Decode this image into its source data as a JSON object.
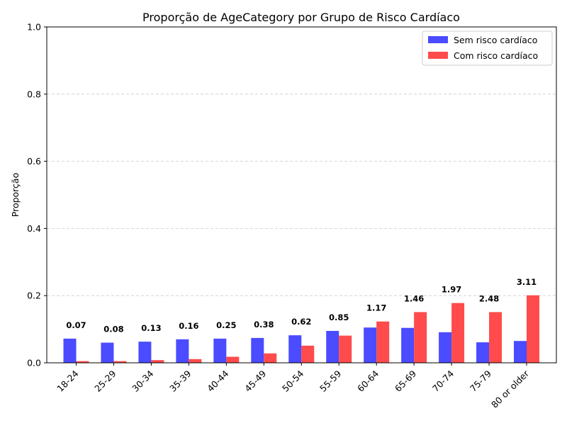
{
  "chart_data": {
    "type": "bar",
    "title": "Proporção de AgeCategory por Grupo de Risco Cardíaco",
    "xlabel": "",
    "ylabel": "Proporção",
    "ylim": [
      0,
      1.0
    ],
    "yticks": [
      "0.0",
      "0.2",
      "0.4",
      "0.6",
      "0.8",
      "1.0"
    ],
    "grid": "horizontal dashed",
    "legend_position": "top-right",
    "categories": [
      "18-24",
      "25-29",
      "30-34",
      "35-39",
      "40-44",
      "45-49",
      "50-54",
      "55-59",
      "60-64",
      "65-69",
      "70-74",
      "75-79",
      "80 or older"
    ],
    "series": [
      {
        "name": "Sem risco cardíaco",
        "color": "#4b4bff",
        "values": [
          0.072,
          0.06,
          0.063,
          0.07,
          0.072,
          0.074,
          0.082,
          0.095,
          0.105,
          0.104,
          0.091,
          0.061,
          0.065
        ]
      },
      {
        "name": "Com risco cardíaco",
        "color": "#ff4b4b",
        "values": [
          0.005,
          0.005,
          0.008,
          0.011,
          0.018,
          0.028,
          0.051,
          0.081,
          0.123,
          0.151,
          0.178,
          0.151,
          0.201
        ]
      }
    ],
    "annotations": [
      "0.07",
      "0.08",
      "0.13",
      "0.16",
      "0.25",
      "0.38",
      "0.62",
      "0.85",
      "1.17",
      "1.46",
      "1.97",
      "2.48",
      "3.11"
    ]
  }
}
